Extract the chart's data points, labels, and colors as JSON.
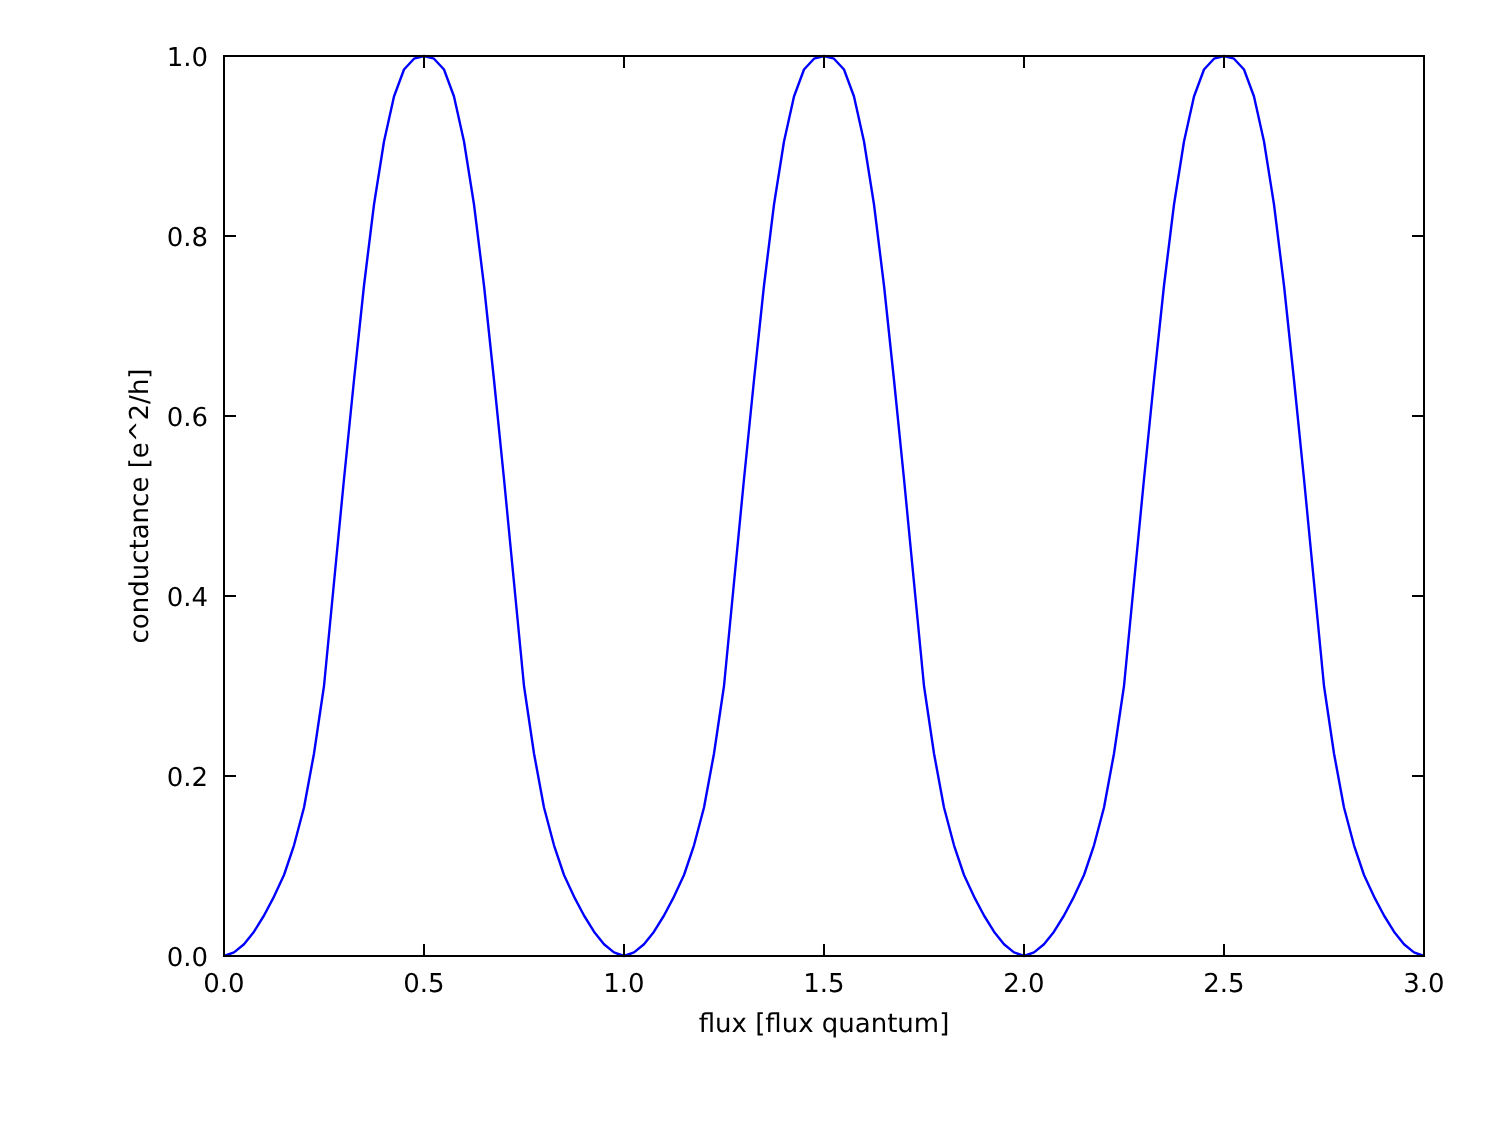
{
  "chart_data": {
    "type": "line",
    "xlabel": "flux [flux quantum]",
    "ylabel": "conductance [e^2/h]",
    "x": [
      0,
      0.025,
      0.05,
      0.075,
      0.1,
      0.125,
      0.15,
      0.175,
      0.2,
      0.225,
      0.25,
      0.275,
      0.3,
      0.325,
      0.35,
      0.375,
      0.4,
      0.425,
      0.45,
      0.475,
      0.5,
      0.525,
      0.55,
      0.575,
      0.6,
      0.625,
      0.65,
      0.675,
      0.7,
      0.725,
      0.75,
      0.775,
      0.8,
      0.825,
      0.85,
      0.875,
      0.9,
      0.925,
      0.95,
      0.975,
      1,
      1.025,
      1.05,
      1.075,
      1.1,
      1.125,
      1.15,
      1.175,
      1.2,
      1.225,
      1.25,
      1.275,
      1.3,
      1.325,
      1.35,
      1.375,
      1.4,
      1.425,
      1.45,
      1.475,
      1.5,
      1.525,
      1.55,
      1.575,
      1.6,
      1.625,
      1.65,
      1.675,
      1.7,
      1.725,
      1.75,
      1.775,
      1.8,
      1.825,
      1.85,
      1.875,
      1.9,
      1.925,
      1.95,
      1.975,
      2,
      2.025,
      2.05,
      2.075,
      2.1,
      2.125,
      2.15,
      2.175,
      2.2,
      2.225,
      2.25,
      2.275,
      2.3,
      2.325,
      2.35,
      2.375,
      2.4,
      2.425,
      2.45,
      2.475,
      2.5,
      2.525,
      2.55,
      2.575,
      2.6,
      2.625,
      2.65,
      2.675,
      2.7,
      2.725,
      2.75,
      2.775,
      2.8,
      2.825,
      2.85,
      2.875,
      2.9,
      2.925,
      2.95,
      2.975,
      3
    ],
    "series": [
      {
        "color": "#0000ff",
        "values": [
          0,
          0.004,
          0.013,
          0.027,
          0.045,
          0.066,
          0.09,
          0.123,
          0.165,
          0.225,
          0.3,
          0.415,
          0.53,
          0.64,
          0.745,
          0.835,
          0.905,
          0.955,
          0.985,
          0.997,
          1,
          0.997,
          0.985,
          0.955,
          0.905,
          0.835,
          0.745,
          0.64,
          0.53,
          0.415,
          0.3,
          0.225,
          0.165,
          0.123,
          0.09,
          0.066,
          0.045,
          0.027,
          0.013,
          0.004,
          0,
          0.004,
          0.013,
          0.027,
          0.045,
          0.066,
          0.09,
          0.123,
          0.165,
          0.225,
          0.3,
          0.415,
          0.53,
          0.64,
          0.745,
          0.835,
          0.905,
          0.955,
          0.985,
          0.997,
          1,
          0.997,
          0.985,
          0.955,
          0.905,
          0.835,
          0.745,
          0.64,
          0.53,
          0.415,
          0.3,
          0.225,
          0.165,
          0.123,
          0.09,
          0.066,
          0.045,
          0.027,
          0.013,
          0.004,
          0,
          0.004,
          0.013,
          0.027,
          0.045,
          0.066,
          0.09,
          0.123,
          0.165,
          0.225,
          0.3,
          0.415,
          0.53,
          0.64,
          0.745,
          0.835,
          0.905,
          0.955,
          0.985,
          0.997,
          1,
          0.997,
          0.985,
          0.955,
          0.905,
          0.835,
          0.745,
          0.64,
          0.53,
          0.415,
          0.3,
          0.225,
          0.165,
          0.123,
          0.09,
          0.066,
          0.045,
          0.027,
          0.013,
          0.004,
          0
        ]
      }
    ],
    "xlim": [
      0,
      3
    ],
    "ylim": [
      0,
      1
    ],
    "xticks": [
      {
        "value": 0,
        "label": "0.0"
      },
      {
        "value": 0.5,
        "label": "0.5"
      },
      {
        "value": 1,
        "label": "1.0"
      },
      {
        "value": 1.5,
        "label": "1.5"
      },
      {
        "value": 2,
        "label": "2.0"
      },
      {
        "value": 2.5,
        "label": "2.5"
      },
      {
        "value": 3,
        "label": "3.0"
      }
    ],
    "yticks": [
      {
        "value": 0,
        "label": "0.0"
      },
      {
        "value": 0.2,
        "label": "0.2"
      },
      {
        "value": 0.4,
        "label": "0.4"
      },
      {
        "value": 0.6,
        "label": "0.6"
      },
      {
        "value": 0.8,
        "label": "0.8"
      },
      {
        "value": 1,
        "label": "1.0"
      }
    ],
    "grid": false,
    "marker": "none",
    "line_style": "solid"
  }
}
